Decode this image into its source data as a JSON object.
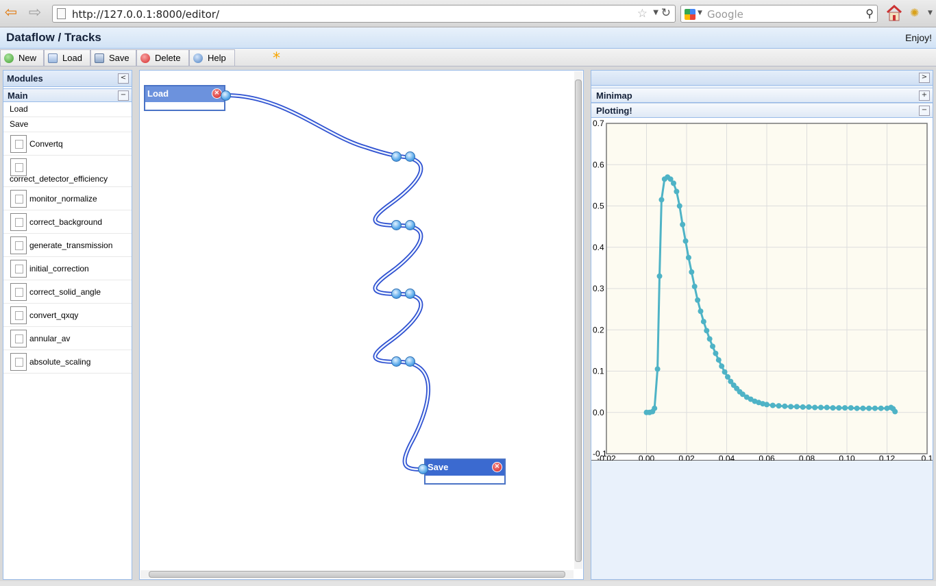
{
  "browser": {
    "url": "http://127.0.0.1:8000/editor/",
    "search_placeholder": "Google"
  },
  "app": {
    "title": "Dataflow / Tracks",
    "greeting": "Enjoy!"
  },
  "toolbar": {
    "new_label": "New",
    "load_label": "Load",
    "save_label": "Save",
    "delete_label": "Delete",
    "help_label": "Help",
    "dirty_marker": "*"
  },
  "modules": {
    "title": "Modules",
    "collapse_symbol": "<",
    "group": {
      "title": "Main",
      "collapse_symbol": "−",
      "items": [
        {
          "label": "Load",
          "icon": false
        },
        {
          "label": "Save",
          "icon": false
        },
        {
          "label": "Convertq",
          "icon": true
        },
        {
          "label": "correct_detector_efficiency",
          "icon": true
        },
        {
          "label": "monitor_normalize",
          "icon": true
        },
        {
          "label": "correct_background",
          "icon": true
        },
        {
          "label": "generate_transmission",
          "icon": true
        },
        {
          "label": "initial_correction",
          "icon": true
        },
        {
          "label": "correct_solid_angle",
          "icon": true
        },
        {
          "label": "convert_qxqy",
          "icon": true
        },
        {
          "label": "annular_av",
          "icon": true
        },
        {
          "label": "absolute_scaling",
          "icon": true
        }
      ]
    }
  },
  "canvas": {
    "nodes": [
      {
        "title": "Load",
        "close_symbol": "×"
      },
      {
        "title": "Save",
        "close_symbol": "×"
      }
    ]
  },
  "right_panel": {
    "expand_symbol": ">",
    "minimap": {
      "title": "Minimap",
      "toggle_symbol": "+"
    },
    "plotting": {
      "title": "Plotting!",
      "toggle_symbol": "−"
    }
  },
  "colors": {
    "series": "#4eb3c6",
    "plot_bg": "#fdfbf1",
    "grid": "#dddddd",
    "wire": "#2c4fd0"
  },
  "chart_data": {
    "type": "line",
    "title": "",
    "xlabel": "",
    "ylabel": "",
    "xlim": [
      -0.02,
      0.14
    ],
    "ylim": [
      -0.1,
      0.7
    ],
    "xticks": [
      "-0.02",
      "0.00",
      "0.02",
      "0.04",
      "0.06",
      "0.08",
      "0.10",
      "0.12",
      "0.1"
    ],
    "yticks": [
      "0.7",
      "0.6",
      "0.5",
      "0.4",
      "0.3",
      "0.2",
      "0.1",
      "0.0",
      "-0.1"
    ],
    "grid": true,
    "series": [
      {
        "x": [
          0.0,
          0.0015,
          0.003,
          0.004,
          0.0055,
          0.0065,
          0.0075,
          0.009,
          0.0105,
          0.012,
          0.0135,
          0.015,
          0.0165,
          0.018,
          0.0195,
          0.021,
          0.0225,
          0.024,
          0.0255,
          0.027,
          0.0285,
          0.03,
          0.0315,
          0.033,
          0.0345,
          0.036,
          0.0375,
          0.039,
          0.0405,
          0.042,
          0.0435,
          0.045,
          0.0465,
          0.048,
          0.05,
          0.052,
          0.054,
          0.056,
          0.058,
          0.06,
          0.063,
          0.066,
          0.069,
          0.072,
          0.075,
          0.078,
          0.081,
          0.084,
          0.087,
          0.09,
          0.093,
          0.096,
          0.099,
          0.102,
          0.105,
          0.108,
          0.111,
          0.114,
          0.117,
          0.12,
          0.122,
          0.123,
          0.124
        ],
        "y": [
          0.0,
          0.0,
          0.002,
          0.01,
          0.105,
          0.33,
          0.515,
          0.565,
          0.57,
          0.565,
          0.555,
          0.535,
          0.5,
          0.455,
          0.415,
          0.375,
          0.34,
          0.305,
          0.272,
          0.245,
          0.22,
          0.198,
          0.178,
          0.16,
          0.143,
          0.127,
          0.112,
          0.098,
          0.086,
          0.075,
          0.066,
          0.058,
          0.05,
          0.044,
          0.037,
          0.032,
          0.027,
          0.024,
          0.021,
          0.019,
          0.017,
          0.016,
          0.015,
          0.014,
          0.014,
          0.013,
          0.013,
          0.012,
          0.012,
          0.012,
          0.011,
          0.011,
          0.011,
          0.011,
          0.01,
          0.01,
          0.01,
          0.01,
          0.01,
          0.01,
          0.012,
          0.009,
          0.002
        ]
      }
    ]
  }
}
